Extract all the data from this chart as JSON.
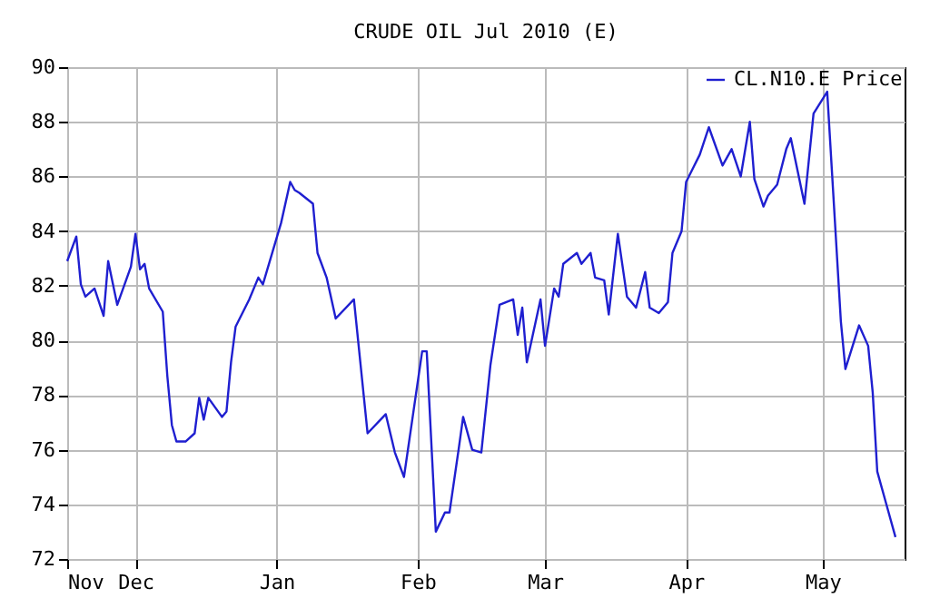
{
  "chart_data": {
    "type": "line",
    "title": "CRUDE OIL Jul 2010 (E)",
    "x": [
      "2009-11-16",
      "2009-11-18",
      "2009-11-19",
      "2009-11-20",
      "2009-11-22",
      "2009-11-24",
      "2009-11-25",
      "2009-11-27",
      "2009-11-30",
      "2009-12-01",
      "2009-12-02",
      "2009-12-03",
      "2009-12-04",
      "2009-12-07",
      "2009-12-08",
      "2009-12-09",
      "2009-12-10",
      "2009-12-12",
      "2009-12-14",
      "2009-12-15",
      "2009-12-16",
      "2009-12-17",
      "2009-12-20",
      "2009-12-21",
      "2009-12-22",
      "2009-12-23",
      "2009-12-26",
      "2009-12-28",
      "2009-12-29",
      "2010-01-02",
      "2010-01-04",
      "2010-01-05",
      "2010-01-06",
      "2010-01-09",
      "2010-01-10",
      "2010-01-12",
      "2010-01-14",
      "2010-01-18",
      "2010-01-21",
      "2010-01-25",
      "2010-01-27",
      "2010-01-29",
      "2010-02-02",
      "2010-02-03",
      "2010-02-05",
      "2010-02-07",
      "2010-02-08",
      "2010-02-10",
      "2010-02-11",
      "2010-02-13",
      "2010-02-15",
      "2010-02-17",
      "2010-02-19",
      "2010-02-22",
      "2010-02-23",
      "2010-02-24",
      "2010-02-25",
      "2010-02-28",
      "2010-03-01",
      "2010-03-03",
      "2010-03-04",
      "2010-03-05",
      "2010-03-08",
      "2010-03-09",
      "2010-03-11",
      "2010-03-12",
      "2010-03-14",
      "2010-03-15",
      "2010-03-17",
      "2010-03-19",
      "2010-03-21",
      "2010-03-23",
      "2010-03-24",
      "2010-03-26",
      "2010-03-28",
      "2010-03-29",
      "2010-03-31",
      "2010-04-01",
      "2010-04-04",
      "2010-04-06",
      "2010-04-09",
      "2010-04-11",
      "2010-04-13",
      "2010-04-15",
      "2010-04-16",
      "2010-04-18",
      "2010-04-19",
      "2010-04-21",
      "2010-04-23",
      "2010-04-24",
      "2010-04-27",
      "2010-04-29",
      "2010-05-02",
      "2010-05-03",
      "2010-05-05",
      "2010-05-06",
      "2010-05-09",
      "2010-05-11",
      "2010-05-12",
      "2010-05-13",
      "2010-05-15",
      "2010-05-17"
    ],
    "series": [
      {
        "name": "CL.N10.E Price",
        "color": "#1f1fd0",
        "values": [
          82.9,
          83.8,
          82.05,
          81.6,
          81.9,
          80.9,
          82.9,
          81.3,
          82.7,
          83.9,
          82.6,
          82.8,
          81.9,
          81.05,
          78.7,
          76.9,
          76.3,
          76.3,
          76.6,
          77.9,
          77.1,
          77.9,
          77.2,
          77.4,
          79.2,
          80.5,
          81.5,
          82.3,
          82.05,
          84.3,
          85.8,
          85.5,
          85.4,
          85.0,
          83.2,
          82.3,
          80.8,
          81.5,
          76.6,
          77.3,
          75.9,
          75.0,
          79.6,
          79.6,
          73.0,
          73.7,
          73.7,
          76.0,
          77.2,
          76.0,
          75.9,
          79.1,
          81.3,
          81.5,
          80.2,
          81.2,
          79.2,
          81.5,
          79.8,
          81.9,
          81.6,
          82.8,
          83.2,
          82.8,
          83.2,
          82.3,
          82.2,
          80.95,
          83.9,
          81.6,
          81.2,
          82.5,
          81.2,
          81.0,
          81.4,
          83.2,
          84.0,
          85.8,
          86.8,
          87.8,
          86.4,
          87.0,
          86.0,
          88.0,
          85.9,
          84.9,
          85.3,
          85.7,
          87.0,
          87.4,
          85.0,
          88.3,
          89.1,
          86.3,
          80.7,
          78.95,
          80.55,
          79.8,
          78.1,
          75.2,
          74.0,
          72.8
        ]
      }
    ],
    "xlim": [
      "2009-11-16",
      "2010-05-19"
    ],
    "xticks": [
      {
        "value": "2009-11-16",
        "label": "Nov"
      },
      {
        "value": "2009-12-01",
        "label": "Dec"
      },
      {
        "value": "2010-01-01",
        "label": "Jan"
      },
      {
        "value": "2010-02-01",
        "label": "Feb"
      },
      {
        "value": "2010-03-01",
        "label": "Mar"
      },
      {
        "value": "2010-04-01",
        "label": "Apr"
      },
      {
        "value": "2010-05-01",
        "label": "May"
      }
    ],
    "ylim": [
      72,
      90
    ],
    "yticks": [
      72,
      74,
      76,
      78,
      80,
      82,
      84,
      86,
      88,
      90
    ],
    "grid": true,
    "legend": "top right",
    "marker": "none",
    "line_style": "solid"
  }
}
